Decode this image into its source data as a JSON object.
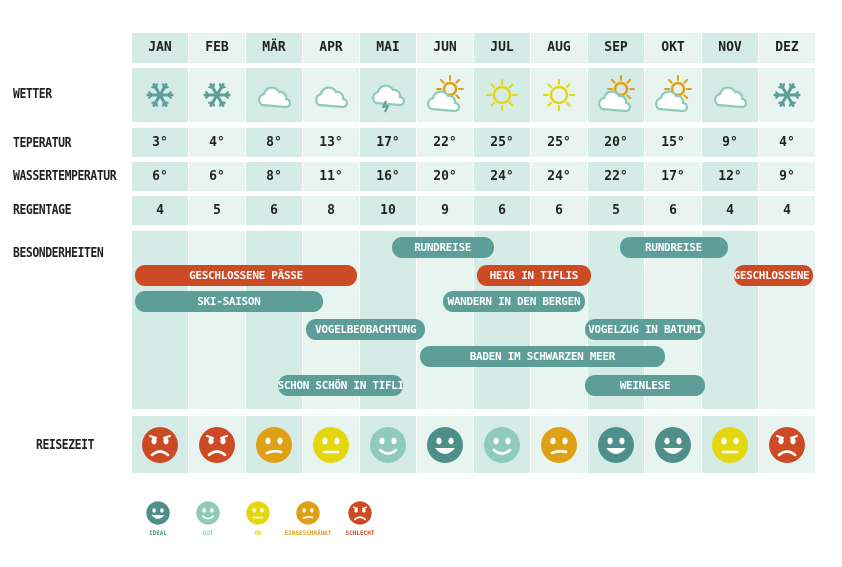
{
  "colors": {
    "cell_light": "#e8f4f0",
    "cell_mid": "#d4ece5",
    "teal_bar": "#5d9e98",
    "red_bar": "#cc4b25",
    "ideal": "#4e8f8a",
    "gut": "#8ecbb9",
    "ok": "#e4d70f",
    "eingeschraenkt": "#e0a016",
    "schlecht": "#cc4b25"
  },
  "labels": {
    "wetter": "WETTER",
    "temperatur": "TEPERATUR",
    "wassertemperatur": "WASSERTEMPERATUR",
    "regentage": "REGENTAGE",
    "besonderheiten": "BESONDERHEITEN",
    "reisezeit": "REISEZEIT"
  },
  "chart_data": {
    "type": "table",
    "months": [
      "JAN",
      "FEB",
      "MÄR",
      "APR",
      "MAI",
      "JUN",
      "JUL",
      "AUG",
      "SEP",
      "OKT",
      "NOV",
      "DEZ"
    ],
    "weather": [
      "snow",
      "snow",
      "cloud",
      "cloud",
      "storm",
      "partly-sunny",
      "sun",
      "sun",
      "partly-sunny",
      "partly-sunny",
      "cloud",
      "snow"
    ],
    "temperature": [
      "3°",
      "4°",
      "8°",
      "13°",
      "17°",
      "22°",
      "25°",
      "25°",
      "20°",
      "15°",
      "9°",
      "4°"
    ],
    "water_temperature": [
      "6°",
      "6°",
      "8°",
      "11°",
      "16°",
      "20°",
      "24°",
      "24°",
      "22°",
      "17°",
      "12°",
      "9°"
    ],
    "rain_days": [
      "4",
      "5",
      "6",
      "8",
      "10",
      "9",
      "6",
      "6",
      "5",
      "6",
      "4",
      "4"
    ],
    "events": [
      {
        "label": "RUNDREISE",
        "start": 4.5,
        "end": 6.4,
        "color": "teal",
        "row": 0
      },
      {
        "label": "RUNDREISE",
        "start": 8.5,
        "end": 10.5,
        "color": "teal",
        "row": 0
      },
      {
        "label": "GESCHLOSSENE PÄSSE",
        "start": 0,
        "end": 4.0,
        "color": "red",
        "row": 1
      },
      {
        "label": "HEIß IN TIFLIS",
        "start": 6.0,
        "end": 8.1,
        "color": "red",
        "row": 1
      },
      {
        "label": "GESCHLOSSENE PÄSSE",
        "start": 10.5,
        "end": 12.0,
        "color": "red",
        "row": 1
      },
      {
        "label": "SKI-SAISON",
        "start": 0,
        "end": 3.4,
        "color": "teal",
        "row": 2
      },
      {
        "label": "WANDERN IN DEN BERGEN",
        "start": 5.4,
        "end": 8.0,
        "color": "teal",
        "row": 2
      },
      {
        "label": "VOGELBEOBACHTUNG",
        "start": 3.0,
        "end": 5.2,
        "color": "teal",
        "row": 3
      },
      {
        "label": "VOGELZUG IN BATUMI",
        "start": 7.9,
        "end": 10.1,
        "color": "teal",
        "row": 3
      },
      {
        "label": "BADEN IM SCHWARZEN MEER",
        "start": 5.0,
        "end": 9.4,
        "color": "teal",
        "row": 4
      },
      {
        "label": "SCHON SCHÖN IN TIFLIS",
        "start": 2.5,
        "end": 4.8,
        "color": "teal",
        "row": 5
      },
      {
        "label": "WEINLESE",
        "start": 7.9,
        "end": 10.1,
        "color": "teal",
        "row": 5
      }
    ],
    "travel_rating": [
      "schlecht",
      "schlecht",
      "eingeschraenkt",
      "ok",
      "gut",
      "ideal",
      "gut",
      "eingeschraenkt",
      "ideal",
      "ideal",
      "ok",
      "schlecht"
    ]
  },
  "legend": [
    {
      "key": "ideal",
      "label": "IDEAL"
    },
    {
      "key": "gut",
      "label": "GUT"
    },
    {
      "key": "ok",
      "label": "OK"
    },
    {
      "key": "eingeschraenkt",
      "label": "EINGESCHRÄNKT"
    },
    {
      "key": "schlecht",
      "label": "SCHLECHT"
    }
  ]
}
